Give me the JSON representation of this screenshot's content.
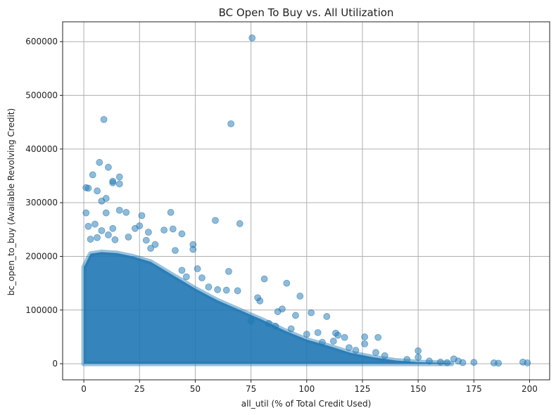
{
  "chart_data": {
    "type": "scatter",
    "title": "BC Open To Buy vs. All Utilization",
    "xlabel": "all_util (% of Total Credit Used)",
    "ylabel": "bc_open_to_buy (Available Revolving Credit)",
    "xlim": [
      -9.5,
      209
    ],
    "ylim": [
      -30000,
      637000
    ],
    "x_ticks": [
      0,
      25,
      50,
      75,
      100,
      125,
      150,
      175,
      200
    ],
    "y_ticks": [
      0,
      100000,
      200000,
      300000,
      400000,
      500000,
      600000
    ],
    "grid": true,
    "marker_color": "#1f77b4",
    "marker_alpha": 0.5,
    "density_envelope": [
      [
        0,
        0
      ],
      [
        0,
        180000
      ],
      [
        3,
        205000
      ],
      [
        8,
        208000
      ],
      [
        15,
        206000
      ],
      [
        22,
        200000
      ],
      [
        30,
        190000
      ],
      [
        40,
        165000
      ],
      [
        50,
        140000
      ],
      [
        60,
        118000
      ],
      [
        70,
        100000
      ],
      [
        80,
        82000
      ],
      [
        90,
        62000
      ],
      [
        100,
        45000
      ],
      [
        110,
        33000
      ],
      [
        120,
        20000
      ],
      [
        130,
        12000
      ],
      [
        140,
        6000
      ],
      [
        150,
        3000
      ],
      [
        165,
        1000
      ],
      [
        165,
        0
      ]
    ],
    "points": [
      [
        75.5,
        607000
      ],
      [
        9,
        455000
      ],
      [
        66,
        447000
      ],
      [
        7,
        375000
      ],
      [
        11,
        366000
      ],
      [
        4,
        352000
      ],
      [
        16,
        348000
      ],
      [
        13,
        340000
      ],
      [
        16,
        335000
      ],
      [
        13,
        337000
      ],
      [
        1,
        328000
      ],
      [
        2,
        327000
      ],
      [
        6,
        322000
      ],
      [
        10,
        308000
      ],
      [
        8,
        303000
      ],
      [
        1,
        281000
      ],
      [
        10,
        281000
      ],
      [
        16,
        286000
      ],
      [
        19,
        282000
      ],
      [
        26,
        276000
      ],
      [
        39,
        282000
      ],
      [
        59,
        267000
      ],
      [
        70,
        261000
      ],
      [
        36,
        249000
      ],
      [
        40,
        251000
      ],
      [
        44,
        242000
      ],
      [
        29,
        245000
      ],
      [
        25,
        257000
      ],
      [
        49,
        222000
      ],
      [
        49,
        213000
      ],
      [
        13,
        252000
      ],
      [
        8,
        248000
      ],
      [
        5,
        260000
      ],
      [
        2,
        256000
      ],
      [
        11,
        240000
      ],
      [
        14,
        231000
      ],
      [
        3,
        232000
      ],
      [
        6,
        235000
      ],
      [
        20,
        236000
      ],
      [
        23,
        252000
      ],
      [
        28,
        230000
      ],
      [
        32,
        222000
      ],
      [
        30,
        215000
      ],
      [
        41,
        211000
      ],
      [
        65,
        172000
      ],
      [
        81,
        158000
      ],
      [
        91,
        150000
      ],
      [
        97,
        126000
      ],
      [
        78,
        123000
      ],
      [
        79,
        117000
      ],
      [
        64,
        137000
      ],
      [
        69,
        136000
      ],
      [
        60,
        138000
      ],
      [
        51,
        177000
      ],
      [
        53,
        160000
      ],
      [
        56,
        143000
      ],
      [
        46,
        162000
      ],
      [
        44,
        174000
      ],
      [
        102,
        95000
      ],
      [
        109,
        88000
      ],
      [
        89,
        102000
      ],
      [
        87,
        97000
      ],
      [
        95,
        90000
      ],
      [
        100,
        55000
      ],
      [
        105,
        58000
      ],
      [
        113,
        57000
      ],
      [
        114,
        53000
      ],
      [
        117,
        49000
      ],
      [
        126,
        50000
      ],
      [
        132,
        49000
      ],
      [
        126,
        37000
      ],
      [
        119,
        30000
      ],
      [
        131,
        21000
      ],
      [
        135,
        15000
      ],
      [
        150,
        24000
      ],
      [
        150,
        12000
      ],
      [
        145,
        8000
      ],
      [
        155,
        5000
      ],
      [
        160,
        3000
      ],
      [
        163,
        2000
      ],
      [
        166,
        9000
      ],
      [
        168,
        5000
      ],
      [
        170,
        2000
      ],
      [
        175,
        2500
      ],
      [
        184,
        1500
      ],
      [
        186,
        1000
      ],
      [
        197,
        3000
      ],
      [
        199,
        1500
      ],
      [
        75,
        80000
      ],
      [
        83,
        75000
      ],
      [
        86,
        70000
      ],
      [
        93,
        65000
      ],
      [
        107,
        40000
      ],
      [
        112,
        42000
      ],
      [
        122,
        25000
      ]
    ]
  }
}
